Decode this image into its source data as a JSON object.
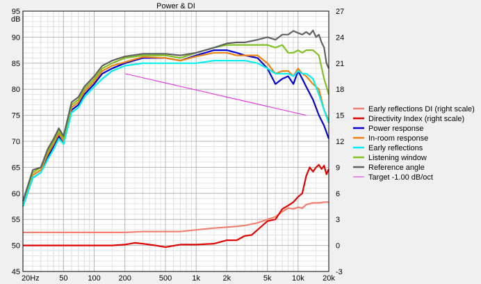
{
  "chart_data": {
    "type": "line",
    "title": "Power & DI",
    "left_axis": {
      "unit": "dB",
      "ylim": [
        45,
        95
      ],
      "ticks": [
        45,
        50,
        55,
        60,
        65,
        70,
        75,
        80,
        85,
        90,
        95
      ]
    },
    "right_axis": {
      "ylim": [
        -3,
        27
      ],
      "ticks": [
        -3,
        0,
        3,
        6,
        9,
        12,
        15,
        18,
        21,
        24,
        27
      ]
    },
    "x_axis": {
      "scale": "log",
      "xlim": [
        20,
        20000
      ],
      "tick_labels": [
        {
          "v": 20,
          "t": "20Hz"
        },
        {
          "v": 50,
          "t": "50"
        },
        {
          "v": 100,
          "t": "100"
        },
        {
          "v": 200,
          "t": "200"
        },
        {
          "v": 500,
          "t": "500"
        },
        {
          "v": 1000,
          "t": "1k"
        },
        {
          "v": 2000,
          "t": "2k"
        },
        {
          "v": 5000,
          "t": "5k"
        },
        {
          "v": 10000,
          "t": "10k"
        },
        {
          "v": 20000,
          "t": "20k"
        }
      ]
    },
    "grid": true,
    "legend_position": "right",
    "series": [
      {
        "name": "Early reflections DI (right scale)",
        "color": "#f08070",
        "axis": "right",
        "points": [
          [
            20,
            1.5
          ],
          [
            50,
            1.5
          ],
          [
            100,
            1.5
          ],
          [
            200,
            1.5
          ],
          [
            300,
            1.6
          ],
          [
            500,
            1.6
          ],
          [
            700,
            1.6
          ],
          [
            1000,
            1.8
          ],
          [
            1500,
            2.0
          ],
          [
            2000,
            2.1
          ],
          [
            2500,
            2.2
          ],
          [
            3000,
            2.3
          ],
          [
            4000,
            2.6
          ],
          [
            5000,
            3.0
          ],
          [
            6000,
            3.3
          ],
          [
            7000,
            3.9
          ],
          [
            8000,
            4.3
          ],
          [
            9000,
            4.2
          ],
          [
            10000,
            4.4
          ],
          [
            11000,
            4.3
          ],
          [
            12000,
            4.7
          ],
          [
            14000,
            4.9
          ],
          [
            16000,
            4.9
          ],
          [
            18000,
            5.0
          ],
          [
            20000,
            5.0
          ]
        ]
      },
      {
        "name": "Directivity Index (right scale)",
        "color": "#e00000",
        "axis": "right",
        "points": [
          [
            20,
            0.0
          ],
          [
            50,
            0.0
          ],
          [
            100,
            0.0
          ],
          [
            150,
            0.0
          ],
          [
            200,
            0.1
          ],
          [
            250,
            0.3
          ],
          [
            300,
            0.2
          ],
          [
            400,
            0.0
          ],
          [
            500,
            -0.2
          ],
          [
            700,
            0.1
          ],
          [
            1000,
            0.1
          ],
          [
            1500,
            0.2
          ],
          [
            2000,
            0.6
          ],
          [
            2500,
            0.6
          ],
          [
            3000,
            1.1
          ],
          [
            3500,
            1.2
          ],
          [
            4000,
            1.8
          ],
          [
            5000,
            2.8
          ],
          [
            6000,
            3.0
          ],
          [
            7000,
            4.2
          ],
          [
            8000,
            4.6
          ],
          [
            9000,
            5.0
          ],
          [
            10000,
            5.6
          ],
          [
            11000,
            6.0
          ],
          [
            12000,
            8.0
          ],
          [
            13000,
            9.0
          ],
          [
            14000,
            8.5
          ],
          [
            15000,
            9.0
          ],
          [
            16000,
            9.3
          ],
          [
            17000,
            8.8
          ],
          [
            18000,
            9.2
          ],
          [
            19000,
            8.2
          ],
          [
            20000,
            8.8
          ]
        ]
      },
      {
        "name": "Power response",
        "color": "#0000d0",
        "axis": "left",
        "points": [
          [
            20,
            57.5
          ],
          [
            25,
            63
          ],
          [
            30,
            64
          ],
          [
            35,
            67
          ],
          [
            40,
            69
          ],
          [
            45,
            71
          ],
          [
            50,
            69.5
          ],
          [
            60,
            76
          ],
          [
            70,
            77
          ],
          [
            80,
            79
          ],
          [
            100,
            81
          ],
          [
            120,
            83
          ],
          [
            150,
            84
          ],
          [
            200,
            85
          ],
          [
            300,
            86
          ],
          [
            500,
            86
          ],
          [
            700,
            85.5
          ],
          [
            1000,
            86.5
          ],
          [
            1500,
            87.5
          ],
          [
            2000,
            87.5
          ],
          [
            2500,
            87
          ],
          [
            3000,
            86.5
          ],
          [
            4000,
            86
          ],
          [
            5000,
            84
          ],
          [
            6000,
            81
          ],
          [
            7000,
            82
          ],
          [
            8000,
            82.5
          ],
          [
            9000,
            81
          ],
          [
            10000,
            83.5
          ],
          [
            11000,
            82
          ],
          [
            12000,
            80.5
          ],
          [
            14000,
            78
          ],
          [
            16000,
            75
          ],
          [
            18000,
            73
          ],
          [
            20000,
            70.5
          ]
        ]
      },
      {
        "name": "In-room response",
        "color": "#f08010",
        "axis": "left",
        "points": [
          [
            20,
            58
          ],
          [
            25,
            63.5
          ],
          [
            30,
            64.5
          ],
          [
            35,
            67.5
          ],
          [
            40,
            69.5
          ],
          [
            45,
            71.5
          ],
          [
            50,
            70
          ],
          [
            60,
            76.5
          ],
          [
            70,
            77.5
          ],
          [
            80,
            79.5
          ],
          [
            100,
            81.5
          ],
          [
            120,
            83.5
          ],
          [
            150,
            84.5
          ],
          [
            200,
            85.2
          ],
          [
            300,
            86.2
          ],
          [
            500,
            86
          ],
          [
            700,
            85.5
          ],
          [
            1000,
            86.3
          ],
          [
            1500,
            87
          ],
          [
            2000,
            87
          ],
          [
            2500,
            86.5
          ],
          [
            3000,
            86.5
          ],
          [
            4000,
            86.5
          ],
          [
            5000,
            85
          ],
          [
            6000,
            83
          ],
          [
            7000,
            83.5
          ],
          [
            8000,
            83.5
          ],
          [
            9000,
            82.5
          ],
          [
            10000,
            84
          ],
          [
            11000,
            83
          ],
          [
            12000,
            82.5
          ],
          [
            14000,
            81
          ],
          [
            16000,
            80
          ],
          [
            18000,
            76
          ],
          [
            20000,
            74
          ]
        ]
      },
      {
        "name": "Early reflections",
        "color": "#00f0f0",
        "axis": "left",
        "points": [
          [
            20,
            57.5
          ],
          [
            25,
            63
          ],
          [
            30,
            64
          ],
          [
            35,
            66.5
          ],
          [
            40,
            68.5
          ],
          [
            45,
            70.5
          ],
          [
            50,
            69.5
          ],
          [
            60,
            75.5
          ],
          [
            70,
            76.5
          ],
          [
            80,
            78.5
          ],
          [
            100,
            80.5
          ],
          [
            120,
            82
          ],
          [
            150,
            83.5
          ],
          [
            200,
            84.5
          ],
          [
            300,
            85
          ],
          [
            500,
            85
          ],
          [
            700,
            85
          ],
          [
            1000,
            85
          ],
          [
            1500,
            85.5
          ],
          [
            2000,
            85.5
          ],
          [
            2500,
            85.5
          ],
          [
            3000,
            85.5
          ],
          [
            4000,
            85
          ],
          [
            5000,
            84
          ],
          [
            6000,
            83
          ],
          [
            7000,
            83
          ],
          [
            8000,
            83
          ],
          [
            9000,
            82.5
          ],
          [
            10000,
            83.5
          ],
          [
            11000,
            83
          ],
          [
            12000,
            83
          ],
          [
            14000,
            82
          ],
          [
            16000,
            79
          ],
          [
            18000,
            76
          ],
          [
            20000,
            73.5
          ]
        ]
      },
      {
        "name": "Listening window",
        "color": "#80c020",
        "axis": "left",
        "points": [
          [
            20,
            58.5
          ],
          [
            25,
            64
          ],
          [
            30,
            65
          ],
          [
            35,
            68
          ],
          [
            40,
            70
          ],
          [
            45,
            72
          ],
          [
            50,
            70.5
          ],
          [
            60,
            77
          ],
          [
            70,
            78
          ],
          [
            80,
            80
          ],
          [
            100,
            82
          ],
          [
            120,
            84
          ],
          [
            150,
            85
          ],
          [
            200,
            86
          ],
          [
            300,
            86.5
          ],
          [
            500,
            86.5
          ],
          [
            700,
            86
          ],
          [
            1000,
            87
          ],
          [
            1500,
            88
          ],
          [
            2000,
            88.5
          ],
          [
            2500,
            88.5
          ],
          [
            3000,
            88.5
          ],
          [
            4000,
            88.5
          ],
          [
            5000,
            88.5
          ],
          [
            6000,
            88
          ],
          [
            7000,
            88.5
          ],
          [
            8000,
            87
          ],
          [
            9000,
            87
          ],
          [
            10000,
            87.5
          ],
          [
            11000,
            87
          ],
          [
            12000,
            87.5
          ],
          [
            14000,
            87.5
          ],
          [
            16000,
            86.5
          ],
          [
            18000,
            82
          ],
          [
            20000,
            79
          ]
        ]
      },
      {
        "name": "Reference angle",
        "color": "#606060",
        "axis": "left",
        "points": [
          [
            20,
            58.5
          ],
          [
            25,
            64.5
          ],
          [
            30,
            65
          ],
          [
            35,
            68.5
          ],
          [
            40,
            70.5
          ],
          [
            45,
            72.5
          ],
          [
            50,
            71
          ],
          [
            60,
            77.5
          ],
          [
            70,
            78.5
          ],
          [
            80,
            80.5
          ],
          [
            100,
            82.5
          ],
          [
            120,
            84.5
          ],
          [
            150,
            85.5
          ],
          [
            200,
            86.3
          ],
          [
            300,
            86.8
          ],
          [
            500,
            86.8
          ],
          [
            700,
            86.5
          ],
          [
            1000,
            87
          ],
          [
            1500,
            88
          ],
          [
            2000,
            88.8
          ],
          [
            2500,
            89
          ],
          [
            3000,
            89
          ],
          [
            4000,
            89.5
          ],
          [
            5000,
            90
          ],
          [
            6000,
            89.5
          ],
          [
            7000,
            90.5
          ],
          [
            8000,
            90.5
          ],
          [
            9000,
            91.2
          ],
          [
            10000,
            90.8
          ],
          [
            11000,
            90.5
          ],
          [
            12000,
            91
          ],
          [
            13000,
            90.5
          ],
          [
            14000,
            91.3
          ],
          [
            15000,
            90
          ],
          [
            16000,
            90.5
          ],
          [
            17000,
            89
          ],
          [
            18000,
            88
          ],
          [
            19000,
            85
          ],
          [
            20000,
            84
          ]
        ]
      },
      {
        "name": "Target -1.00 dB/oct",
        "color": "#e020e0",
        "axis": "left",
        "points": [
          [
            200,
            83
          ],
          [
            12000,
            75
          ]
        ]
      }
    ]
  }
}
